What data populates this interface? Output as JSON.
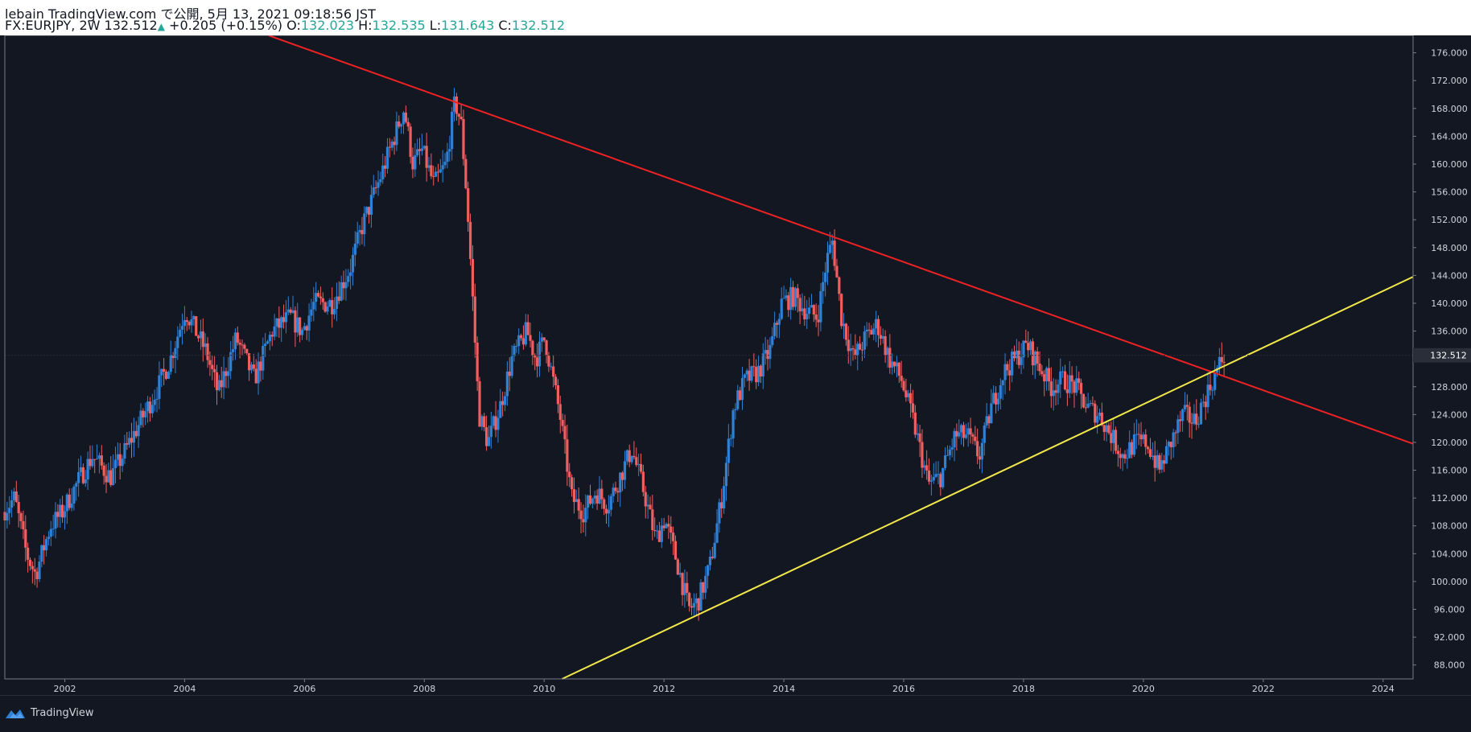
{
  "header": {
    "publish_line": "lebain TradingView.com で公開, 5月 13, 2021 09:18:56 JST",
    "symbol": "FX:EURJPY, 2W 132.512",
    "change": "+0.205 (+0.15%)",
    "o_label": "O:",
    "o_value": "132.023",
    "h_label": "H:",
    "h_value": "132.535",
    "l_label": "L:",
    "l_value": "131.643",
    "c_label": "C:",
    "c_value": "132.512"
  },
  "footer": {
    "brand_label": "TradingView"
  },
  "colors": {
    "background": "#131722",
    "up": "#2f81d6",
    "down": "#f05f5f",
    "resistance": "#ee2222",
    "support": "#f3e84a",
    "axis_text": "#d1d4dc",
    "last_price_bg": "#2a2e39"
  },
  "chart_data": {
    "type": "candlestick",
    "symbol": "FX:EURJPY",
    "interval": "2W",
    "xlim": [
      2001.0,
      2024.5
    ],
    "ylim": [
      86.0,
      178.5
    ],
    "x_ticks": [
      2002,
      2004,
      2006,
      2008,
      2010,
      2012,
      2014,
      2016,
      2018,
      2020,
      2022,
      2024
    ],
    "x_tick_labels": [
      "2002",
      "2004",
      "2006",
      "2008",
      "2010",
      "2012",
      "2014",
      "2016",
      "2018",
      "2020",
      "2022",
      "2024"
    ],
    "y_ticks": [
      88,
      92,
      96,
      100,
      104,
      108,
      112,
      116,
      120,
      124,
      128,
      132,
      136,
      140,
      144,
      148,
      152,
      156,
      160,
      164,
      168,
      172,
      176
    ],
    "y_tick_labels": [
      "88.000",
      "92.000",
      "96.000",
      "100.000",
      "104.000",
      "108.000",
      "112.000",
      "116.000",
      "120.000",
      "124.000",
      "128.000",
      "132.000",
      "136.000",
      "140.000",
      "144.000",
      "148.000",
      "152.000",
      "156.000",
      "160.000",
      "164.000",
      "168.000",
      "172.000",
      "176.000"
    ],
    "last_price": 132.512,
    "last_price_label": "132.512",
    "price_path": [
      [
        2001.0,
        110
      ],
      [
        2001.2,
        112
      ],
      [
        2001.4,
        104
      ],
      [
        2001.55,
        101
      ],
      [
        2001.8,
        108
      ],
      [
        2002.0,
        110
      ],
      [
        2002.3,
        115
      ],
      [
        2002.5,
        118
      ],
      [
        2002.8,
        115
      ],
      [
        2003.0,
        118
      ],
      [
        2003.3,
        123
      ],
      [
        2003.6,
        128
      ],
      [
        2003.8,
        132
      ],
      [
        2004.05,
        139
      ],
      [
        2004.4,
        133
      ],
      [
        2004.6,
        127
      ],
      [
        2004.9,
        135
      ],
      [
        2005.2,
        129
      ],
      [
        2005.5,
        136
      ],
      [
        2005.8,
        138
      ],
      [
        2006.0,
        136
      ],
      [
        2006.2,
        140
      ],
      [
        2006.5,
        140
      ],
      [
        2006.8,
        145
      ],
      [
        2007.0,
        151
      ],
      [
        2007.3,
        158
      ],
      [
        2007.5,
        163
      ],
      [
        2007.7,
        168
      ],
      [
        2007.85,
        160
      ],
      [
        2008.0,
        162
      ],
      [
        2008.2,
        157
      ],
      [
        2008.4,
        160
      ],
      [
        2008.55,
        169
      ],
      [
        2008.65,
        166
      ],
      [
        2008.75,
        155
      ],
      [
        2008.85,
        140
      ],
      [
        2008.95,
        124
      ],
      [
        2009.1,
        120
      ],
      [
        2009.3,
        125
      ],
      [
        2009.5,
        132
      ],
      [
        2009.75,
        136
      ],
      [
        2009.9,
        132
      ],
      [
        2010.05,
        135
      ],
      [
        2010.3,
        124
      ],
      [
        2010.5,
        112
      ],
      [
        2010.7,
        110
      ],
      [
        2010.9,
        113
      ],
      [
        2011.1,
        111
      ],
      [
        2011.3,
        115
      ],
      [
        2011.5,
        119
      ],
      [
        2011.7,
        113
      ],
      [
        2011.9,
        106
      ],
      [
        2012.05,
        109
      ],
      [
        2012.25,
        103
      ],
      [
        2012.45,
        96
      ],
      [
        2012.6,
        97
      ],
      [
        2012.8,
        102
      ],
      [
        2013.0,
        112
      ],
      [
        2013.2,
        125
      ],
      [
        2013.4,
        129
      ],
      [
        2013.6,
        130
      ],
      [
        2013.8,
        133
      ],
      [
        2014.0,
        140
      ],
      [
        2014.2,
        141
      ],
      [
        2014.4,
        139
      ],
      [
        2014.6,
        138
      ],
      [
        2014.75,
        146
      ],
      [
        2014.85,
        149
      ],
      [
        2015.0,
        138
      ],
      [
        2015.2,
        132
      ],
      [
        2015.4,
        135
      ],
      [
        2015.6,
        137
      ],
      [
        2015.8,
        132
      ],
      [
        2016.0,
        129
      ],
      [
        2016.2,
        123
      ],
      [
        2016.45,
        114
      ],
      [
        2016.65,
        115
      ],
      [
        2016.9,
        121
      ],
      [
        2017.1,
        121
      ],
      [
        2017.3,
        118
      ],
      [
        2017.5,
        125
      ],
      [
        2017.7,
        130
      ],
      [
        2017.9,
        132
      ],
      [
        2018.1,
        134
      ],
      [
        2018.3,
        131
      ],
      [
        2018.5,
        128
      ],
      [
        2018.7,
        129
      ],
      [
        2018.9,
        128
      ],
      [
        2019.1,
        125
      ],
      [
        2019.3,
        124
      ],
      [
        2019.5,
        121
      ],
      [
        2019.7,
        118
      ],
      [
        2019.9,
        120
      ],
      [
        2020.1,
        120
      ],
      [
        2020.3,
        116
      ],
      [
        2020.5,
        120
      ],
      [
        2020.7,
        124
      ],
      [
        2020.9,
        123
      ],
      [
        2021.1,
        127
      ],
      [
        2021.3,
        131
      ],
      [
        2021.38,
        132.5
      ]
    ],
    "trendlines": [
      {
        "name": "resistance",
        "color": "resistance",
        "p1": [
          2005.4,
          178.5
        ],
        "p2": [
          2024.5,
          119.8
        ]
      },
      {
        "name": "support",
        "color": "support",
        "p1": [
          2010.3,
          86.0
        ],
        "p2": [
          2024.5,
          143.8
        ]
      }
    ]
  }
}
